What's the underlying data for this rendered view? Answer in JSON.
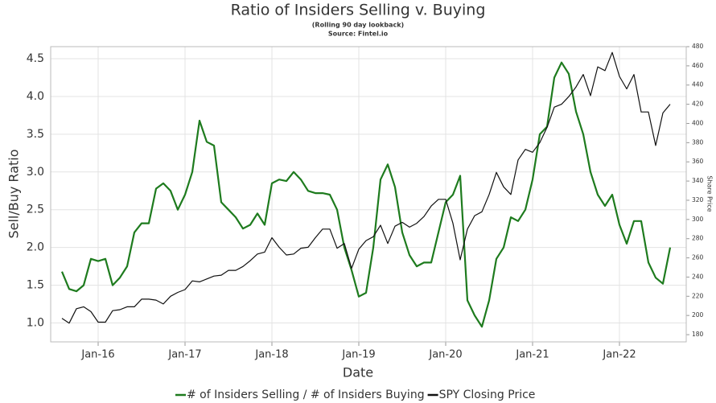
{
  "chart_data": {
    "type": "line",
    "title": "Ratio of Insiders Selling v. Buying",
    "subtitle": "(Rolling 90 day lookback)",
    "source": "Source: Fintel.io",
    "xlabel": "Date",
    "ylabel": "Sell/Buy Ratio",
    "y2label": "Share Price",
    "x": [
      "Aug-15",
      "Sep-15",
      "Oct-15",
      "Nov-15",
      "Dec-15",
      "Jan-16",
      "Feb-16",
      "Mar-16",
      "Apr-16",
      "May-16",
      "Jun-16",
      "Jul-16",
      "Aug-16",
      "Sep-16",
      "Oct-16",
      "Nov-16",
      "Dec-16",
      "Jan-17",
      "Feb-17",
      "Mar-17",
      "Apr-17",
      "May-17",
      "Jun-17",
      "Jul-17",
      "Aug-17",
      "Sep-17",
      "Oct-17",
      "Nov-17",
      "Dec-17",
      "Jan-18",
      "Feb-18",
      "Mar-18",
      "Apr-18",
      "May-18",
      "Jun-18",
      "Jul-18",
      "Aug-18",
      "Sep-18",
      "Oct-18",
      "Nov-18",
      "Dec-18",
      "Jan-19",
      "Feb-19",
      "Mar-19",
      "Apr-19",
      "May-19",
      "Jun-19",
      "Jul-19",
      "Aug-19",
      "Sep-19",
      "Oct-19",
      "Nov-19",
      "Dec-19",
      "Jan-20",
      "Feb-20",
      "Mar-20",
      "Apr-20",
      "May-20",
      "Jun-20",
      "Jul-20",
      "Aug-20",
      "Sep-20",
      "Oct-20",
      "Nov-20",
      "Dec-20",
      "Jan-21",
      "Feb-21",
      "Mar-21",
      "Apr-21",
      "May-21",
      "Jun-21",
      "Jul-21",
      "Aug-21",
      "Sep-21",
      "Oct-21",
      "Nov-21",
      "Dec-21",
      "Jan-22",
      "Feb-22",
      "Mar-22",
      "Apr-22",
      "May-22",
      "Jun-22",
      "Jul-22",
      "Aug-22"
    ],
    "xticks": [
      "Jan-16",
      "Jan-17",
      "Jan-18",
      "Jan-19",
      "Jan-20",
      "Jan-21",
      "Jan-22"
    ],
    "series": [
      {
        "name": "# of Insiders Selling / # of Insiders Buying",
        "color": "#1e7b1e",
        "values": [
          1.68,
          1.45,
          1.42,
          1.5,
          1.85,
          1.82,
          1.85,
          1.5,
          1.6,
          1.75,
          2.2,
          2.32,
          2.32,
          2.78,
          2.85,
          2.75,
          2.5,
          2.7,
          3.0,
          3.68,
          3.4,
          3.35,
          2.6,
          2.5,
          2.4,
          2.25,
          2.3,
          2.45,
          2.3,
          2.85,
          2.9,
          2.88,
          3.0,
          2.9,
          2.75,
          2.72,
          2.72,
          2.7,
          2.5,
          2.0,
          1.7,
          1.35,
          1.4,
          2.0,
          2.9,
          3.1,
          2.8,
          2.2,
          1.9,
          1.75,
          1.8,
          1.8,
          2.2,
          2.6,
          2.7,
          2.95,
          1.3,
          1.1,
          0.95,
          1.3,
          1.85,
          2.0,
          2.4,
          2.35,
          2.5,
          2.9,
          3.5,
          3.6,
          4.25,
          4.45,
          4.3,
          3.8,
          3.5,
          3.0,
          2.7,
          2.55,
          2.7,
          2.3,
          2.05,
          2.35,
          2.35,
          1.8,
          1.6,
          1.52,
          2.0
        ]
      },
      {
        "name": "SPY Closing Price",
        "color": "#111111",
        "axis": "y2",
        "values": [
          197,
          192,
          207,
          209,
          204,
          193,
          193,
          205,
          206,
          209,
          209,
          217,
          217,
          216,
          212,
          220,
          224,
          227,
          236,
          235,
          238,
          241,
          242,
          247,
          247,
          251,
          257,
          264,
          266,
          281,
          271,
          263,
          264,
          270,
          271,
          281,
          290,
          290,
          270,
          275,
          249,
          269,
          278,
          282,
          294,
          275,
          293,
          297,
          292,
          296,
          303,
          314,
          321,
          321,
          296,
          258,
          290,
          304,
          308,
          326,
          349,
          334,
          326,
          362,
          373,
          370,
          380,
          396,
          417,
          420,
          428,
          438,
          451,
          429,
          459,
          455,
          474,
          449,
          436,
          451,
          412,
          412,
          377,
          411,
          420
        ]
      }
    ],
    "ylim": [
      0.75,
      4.66
    ],
    "yticks": [
      {
        "value": 1,
        "label": "1.0"
      },
      1.5,
      {
        "value": 2,
        "label": "2.0"
      },
      2.5,
      {
        "value": 3,
        "label": "3.0"
      },
      3.5,
      {
        "value": 4,
        "label": "4.0"
      },
      4.5
    ],
    "y2lim": [
      172.5,
      480
    ],
    "y2ticks": [
      180,
      200,
      220,
      240,
      260,
      280,
      300,
      320,
      340,
      360,
      380,
      400,
      420,
      440,
      460,
      480
    ],
    "grid": true,
    "legend": "bottom"
  }
}
